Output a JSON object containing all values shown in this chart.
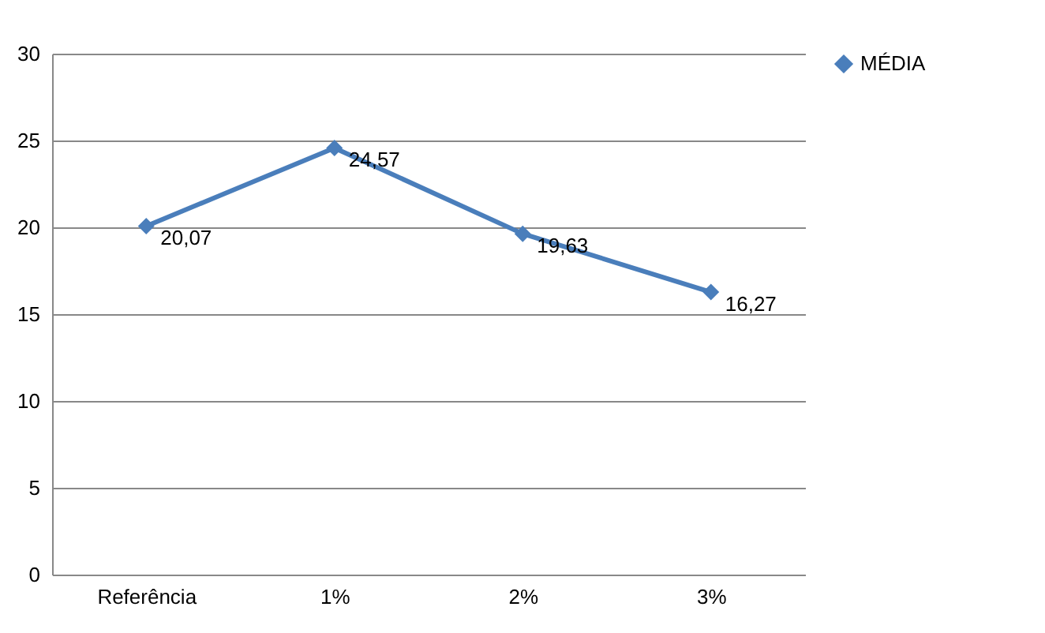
{
  "chart_data": {
    "type": "line",
    "categories": [
      "Referência",
      "1%",
      "2%",
      "3%"
    ],
    "series": [
      {
        "name": "MÉDIA",
        "color": "#4a7ebb",
        "values": [
          20.07,
          24.57,
          19.63,
          16.27
        ],
        "value_labels": [
          "20,07",
          "24,57",
          "19,63",
          "16,27"
        ]
      }
    ],
    "ylim": [
      0,
      30
    ],
    "yticks": [
      0,
      5,
      10,
      15,
      20,
      25,
      30
    ],
    "grid": "y",
    "legend": "right",
    "marker": "diamond",
    "line_style": "solid"
  }
}
